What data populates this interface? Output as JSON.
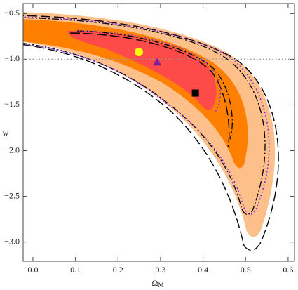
{
  "chart_data": {
    "type": "scatter",
    "xlabel": "Ω",
    "xlabel_subscript": "M",
    "ylabel": "w",
    "xlim": [
      -0.023,
      0.615
    ],
    "ylim": [
      -3.21,
      -0.39
    ],
    "xticks": [
      {
        "value": 0,
        "label": "0.0"
      },
      0.1,
      0.2,
      0.3,
      0.4,
      0.5,
      0.6
    ],
    "yticks": [
      {
        "value": -0.5,
        "label": "−0.5"
      },
      {
        "value": -1.0,
        "label": "−1.0"
      },
      {
        "value": -1.5,
        "label": "−1.5"
      },
      {
        "value": -2.0,
        "label": "−2.0"
      },
      {
        "value": -2.5,
        "label": "−2.5"
      },
      {
        "value": -3.0,
        "label": "−3.0"
      }
    ],
    "hline": -1.0,
    "hline_color": "#999999",
    "series": [
      {
        "color": "#ffff00",
        "marker": "circle",
        "x": [
          0.249
        ],
        "values": [
          -0.92
        ]
      },
      {
        "color": "#7a1fa2",
        "marker": "triangle",
        "x": [
          0.292
        ],
        "values": [
          -1.03
        ]
      },
      {
        "color": "#000000",
        "marker": "square",
        "x": [
          0.382
        ],
        "values": [
          -1.37
        ]
      }
    ]
  }
}
